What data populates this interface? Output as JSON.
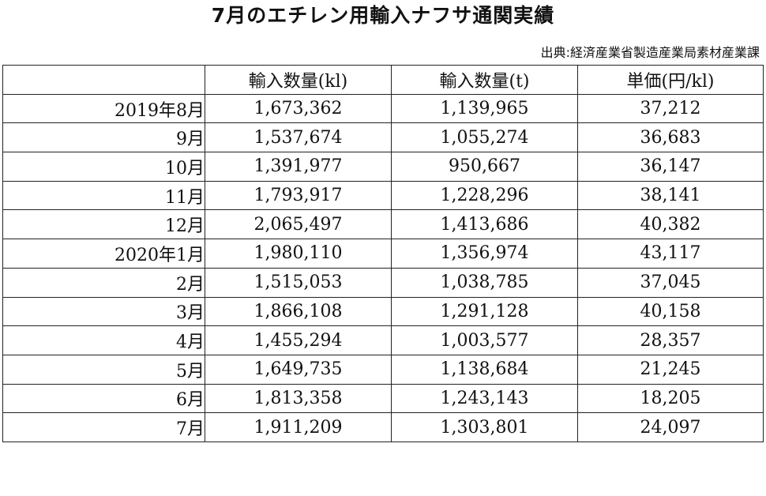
{
  "title": "7月のエチレン用輸入ナフサ通関実績",
  "source": "出典:経済産業省製造産業局素材産業課",
  "table": {
    "headers": [
      "",
      "輸入数量(kl)",
      "輸入数量(t)",
      "単価(円/kl)"
    ],
    "rows": [
      {
        "period": "2019年8月",
        "kl": "1,673,362",
        "t": "1,139,965",
        "price": "37,212"
      },
      {
        "period": "9月",
        "kl": "1,537,674",
        "t": "1,055,274",
        "price": "36,683"
      },
      {
        "period": "10月",
        "kl": "1,391,977",
        "t": "950,667",
        "price": "36,147"
      },
      {
        "period": "11月",
        "kl": "1,793,917",
        "t": "1,228,296",
        "price": "38,141"
      },
      {
        "period": "12月",
        "kl": "2,065,497",
        "t": "1,413,686",
        "price": "40,382"
      },
      {
        "period": "2020年1月",
        "kl": "1,980,110",
        "t": "1,356,974",
        "price": "43,117"
      },
      {
        "period": "2月",
        "kl": "1,515,053",
        "t": "1,038,785",
        "price": "37,045"
      },
      {
        "period": "3月",
        "kl": "1,866,108",
        "t": "1,291,128",
        "price": "40,158"
      },
      {
        "period": "4月",
        "kl": "1,455,294",
        "t": "1,003,577",
        "price": "28,357"
      },
      {
        "period": "5月",
        "kl": "1,649,735",
        "t": "1,138,684",
        "price": "21,245"
      },
      {
        "period": "6月",
        "kl": "1,813,358",
        "t": "1,243,143",
        "price": "18,205"
      },
      {
        "period": "7月",
        "kl": "1,911,209",
        "t": "1,303,801",
        "price": "24,097"
      }
    ]
  }
}
